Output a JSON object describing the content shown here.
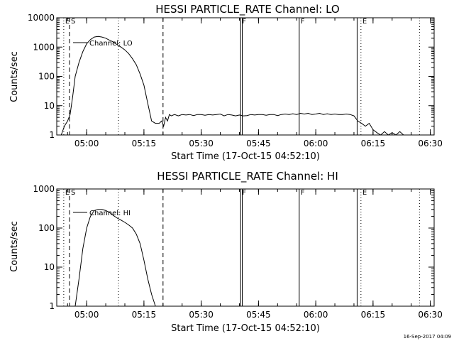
{
  "footer": {
    "timestamp": "16-Sep-2017 04:09"
  },
  "chart_data": [
    {
      "type": "line",
      "title": "HESSI PARTICLE_RATE Channel: LO",
      "xlabel": "Start Time (17-Oct-15 04:52:10)",
      "ylabel": "Counts/sec",
      "yscale": "log",
      "ylim": [
        1,
        10000
      ],
      "xlim": [
        "04:52:10",
        "06:31:00"
      ],
      "grid": false,
      "legend_placement": "top-left",
      "y_ticks": [
        "1",
        "10",
        "100",
        "1000",
        "10000"
      ],
      "x_ticks": [
        "05:00",
        "05:15",
        "05:30",
        "05:45",
        "06:00",
        "06:15",
        "06:30"
      ],
      "markers": [
        {
          "time": "04:54:00",
          "label": "E",
          "style": "dotted"
        },
        {
          "time": "04:55:30",
          "label": "S",
          "style": "dashed"
        },
        {
          "time": "05:08:20",
          "label": "",
          "style": "dotted"
        },
        {
          "time": "05:20:00",
          "label": "",
          "style": "dashed"
        },
        {
          "time": "05:40:20",
          "label": "F",
          "style": "solid"
        },
        {
          "time": "05:40:45",
          "label": "",
          "style": "solid"
        },
        {
          "time": "05:55:40",
          "label": "F",
          "style": "solid"
        },
        {
          "time": "06:10:50",
          "label": "",
          "style": "solid"
        },
        {
          "time": "06:11:50",
          "label": "E",
          "style": "dotted"
        },
        {
          "time": "06:27:10",
          "label": "",
          "style": "dotted"
        }
      ],
      "series": [
        {
          "name": "Channel: LO",
          "x": [
            "04:52:40",
            "04:53:20",
            "04:54:10",
            "04:55:00",
            "04:55:40",
            "04:56:20",
            "04:57:00",
            "04:58:00",
            "04:59:00",
            "05:00:00",
            "05:01:00",
            "05:02:00",
            "05:03:00",
            "05:04:00",
            "05:05:00",
            "05:06:00",
            "05:07:00",
            "05:08:00",
            "05:09:00",
            "05:10:00",
            "05:11:00",
            "05:12:00",
            "05:13:00",
            "05:14:00",
            "05:15:00",
            "05:16:00",
            "05:17:00",
            "05:18:00",
            "05:19:00",
            "05:19:40",
            "05:20:10",
            "05:20:40",
            "05:21:10",
            "05:21:40",
            "05:22:10",
            "05:23:00",
            "05:24:00",
            "05:25:00",
            "05:26:00",
            "05:27:00",
            "05:28:00",
            "05:29:00",
            "05:30:00",
            "05:31:00",
            "05:32:00",
            "05:33:00",
            "05:34:00",
            "05:35:00",
            "05:36:00",
            "05:37:00",
            "05:38:00",
            "05:39:00",
            "05:40:00",
            "05:41:00",
            "05:42:00",
            "05:43:00",
            "05:44:00",
            "05:45:00",
            "05:46:00",
            "05:47:00",
            "05:48:00",
            "05:49:00",
            "05:50:00",
            "05:51:00",
            "05:52:00",
            "05:53:00",
            "05:54:00",
            "05:55:00",
            "05:56:00",
            "05:57:00",
            "05:58:00",
            "05:59:00",
            "06:00:00",
            "06:01:00",
            "06:02:00",
            "06:03:00",
            "06:04:00",
            "06:05:00",
            "06:06:00",
            "06:07:00",
            "06:08:00",
            "06:09:00",
            "06:10:00",
            "06:11:00",
            "06:12:00",
            "06:13:00",
            "06:14:00",
            "06:15:00",
            "06:16:00",
            "06:17:00",
            "06:18:00",
            "06:19:00",
            "06:20:00",
            "06:21:00",
            "06:22:00",
            "06:23:00",
            "06:24:00"
          ],
          "y": [
            1,
            1,
            2,
            3,
            5,
            20,
            100,
            300,
            700,
            1300,
            1800,
            2200,
            2300,
            2200,
            2000,
            1700,
            1500,
            1200,
            1000,
            800,
            600,
            400,
            250,
            120,
            50,
            12,
            3,
            2.5,
            2.5,
            3,
            2,
            4,
            3,
            5,
            4.5,
            5,
            4.5,
            5,
            4.8,
            5,
            4.6,
            5,
            5,
            4.7,
            5,
            4.8,
            5,
            5.2,
            4.5,
            5,
            4.8,
            4.5,
            4.8,
            4.5,
            4.6,
            5,
            4.8,
            5,
            5,
            4.7,
            5,
            5,
            4.6,
            5,
            5.2,
            5,
            5.3,
            5,
            5.5,
            5.2,
            5.5,
            5,
            5.2,
            5.5,
            5,
            5.3,
            5,
            5.2,
            5,
            5,
            5.2,
            5,
            4.5,
            3,
            2.5,
            2,
            2.5,
            1.5,
            1.2,
            1,
            1.3,
            1,
            1.2,
            1,
            1.3,
            1,
            1
          ]
        }
      ]
    },
    {
      "type": "line",
      "title": "HESSI PARTICLE_RATE Channel: HI",
      "xlabel": "Start Time (17-Oct-15 04:52:10)",
      "ylabel": "Counts/sec",
      "yscale": "log",
      "ylim": [
        1,
        1000
      ],
      "xlim": [
        "04:52:10",
        "06:31:00"
      ],
      "grid": false,
      "legend_placement": "top-left",
      "y_ticks": [
        "1",
        "10",
        "100",
        "1000"
      ],
      "x_ticks": [
        "05:00",
        "05:15",
        "05:30",
        "05:45",
        "06:00",
        "06:15",
        "06:30"
      ],
      "markers": [
        {
          "time": "04:54:00",
          "label": "E",
          "style": "dotted"
        },
        {
          "time": "04:55:30",
          "label": "S",
          "style": "dashed"
        },
        {
          "time": "05:08:20",
          "label": "",
          "style": "dotted"
        },
        {
          "time": "05:20:00",
          "label": "",
          "style": "dashed"
        },
        {
          "time": "05:40:20",
          "label": "F",
          "style": "solid"
        },
        {
          "time": "05:40:45",
          "label": "",
          "style": "solid"
        },
        {
          "time": "05:55:40",
          "label": "F",
          "style": "solid"
        },
        {
          "time": "06:10:50",
          "label": "",
          "style": "solid"
        },
        {
          "time": "06:11:50",
          "label": "E",
          "style": "dotted"
        },
        {
          "time": "06:27:10",
          "label": "",
          "style": "dotted"
        }
      ],
      "series": [
        {
          "name": "Channel: HI",
          "x": [
            "04:57:00",
            "04:58:00",
            "04:59:00",
            "05:00:00",
            "05:01:00",
            "05:02:00",
            "05:03:00",
            "05:04:00",
            "05:05:00",
            "05:06:00",
            "05:07:00",
            "05:08:00",
            "05:09:00",
            "05:10:00",
            "05:11:00",
            "05:12:00",
            "05:13:00",
            "05:14:00",
            "05:15:00",
            "05:16:00",
            "05:17:00",
            "05:18:00"
          ],
          "y": [
            1,
            5,
            30,
            100,
            200,
            280,
            300,
            300,
            280,
            250,
            210,
            180,
            160,
            140,
            120,
            100,
            70,
            40,
            15,
            5,
            2,
            1
          ]
        }
      ]
    }
  ]
}
